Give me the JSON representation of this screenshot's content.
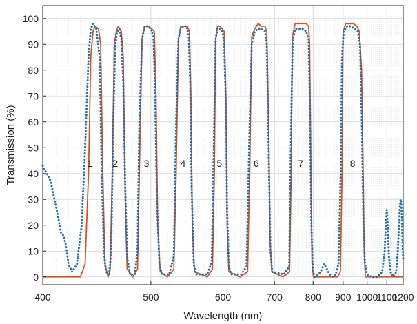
{
  "chart_data": {
    "type": "line",
    "title": "",
    "xlabel": "Wavelength (nm)",
    "ylabel": "Transmission (%)",
    "x_scale": "reciprocal",
    "xlim": [
      400,
      1200
    ],
    "ylim": [
      -3,
      105
    ],
    "xticks": [
      400,
      500,
      600,
      700,
      800,
      900,
      1000,
      1100,
      1200
    ],
    "xtick_labels": [
      "400",
      "500",
      "600",
      "700",
      "800",
      "900",
      "1000",
      "1100",
      "1200"
    ],
    "yticks": [
      0,
      10,
      20,
      30,
      40,
      50,
      60,
      70,
      80,
      90,
      100
    ],
    "ytick_labels": [
      "0",
      "10",
      "20",
      "30",
      "40",
      "50",
      "60",
      "70",
      "80",
      "90",
      "100"
    ],
    "grid": true,
    "legend": "none",
    "series": [
      {
        "color": "#d95319",
        "style": "solid",
        "points": [
          [
            400,
            0
          ],
          [
            430,
            0
          ],
          [
            434,
            5
          ],
          [
            437,
            40
          ],
          [
            439,
            85
          ],
          [
            441,
            95
          ],
          [
            443,
            97
          ],
          [
            446,
            96
          ],
          [
            448,
            90
          ],
          [
            450,
            40
          ],
          [
            452,
            5
          ],
          [
            455,
            0
          ],
          [
            457,
            3
          ],
          [
            459,
            40
          ],
          [
            461,
            90
          ],
          [
            463,
            95
          ],
          [
            465,
            97
          ],
          [
            468,
            95
          ],
          [
            470,
            85
          ],
          [
            472,
            30
          ],
          [
            474,
            3
          ],
          [
            480,
            0
          ],
          [
            485,
            3
          ],
          [
            487,
            40
          ],
          [
            490,
            92
          ],
          [
            493,
            97
          ],
          [
            497,
            97
          ],
          [
            501,
            96
          ],
          [
            504,
            95
          ],
          [
            506,
            70
          ],
          [
            508,
            20
          ],
          [
            511,
            2
          ],
          [
            520,
            0
          ],
          [
            528,
            3
          ],
          [
            531,
            40
          ],
          [
            534,
            92
          ],
          [
            537,
            97
          ],
          [
            542,
            97
          ],
          [
            546,
            97
          ],
          [
            549,
            95
          ],
          [
            551,
            70
          ],
          [
            553,
            20
          ],
          [
            556,
            2
          ],
          [
            575,
            0
          ],
          [
            583,
            3
          ],
          [
            586,
            40
          ],
          [
            588,
            92
          ],
          [
            591,
            97
          ],
          [
            595,
            97
          ],
          [
            599,
            96
          ],
          [
            602,
            95
          ],
          [
            605,
            70
          ],
          [
            607,
            20
          ],
          [
            610,
            2
          ],
          [
            630,
            0
          ],
          [
            644,
            2
          ],
          [
            648,
            40
          ],
          [
            652,
            93
          ],
          [
            658,
            96
          ],
          [
            665,
            98
          ],
          [
            672,
            97
          ],
          [
            679,
            97
          ],
          [
            683,
            95
          ],
          [
            687,
            60
          ],
          [
            690,
            15
          ],
          [
            694,
            2
          ],
          [
            720,
            0
          ],
          [
            736,
            2
          ],
          [
            740,
            40
          ],
          [
            743,
            93
          ],
          [
            750,
            98
          ],
          [
            760,
            98
          ],
          [
            770,
            98
          ],
          [
            780,
            98
          ],
          [
            787,
            97
          ],
          [
            790,
            90
          ],
          [
            794,
            35
          ],
          [
            797,
            5
          ],
          [
            801,
            0
          ],
          [
            880,
            0
          ],
          [
            890,
            2
          ],
          [
            896,
            40
          ],
          [
            900,
            95
          ],
          [
            910,
            98
          ],
          [
            925,
            98
          ],
          [
            940,
            98
          ],
          [
            955,
            97
          ],
          [
            965,
            95
          ],
          [
            975,
            80
          ],
          [
            982,
            40
          ],
          [
            987,
            8
          ],
          [
            992,
            0
          ],
          [
            1200,
            0
          ]
        ]
      },
      {
        "color": "#1f6fb4",
        "style": "dotted",
        "points": [
          [
            400,
            43
          ],
          [
            406,
            37
          ],
          [
            411,
            25
          ],
          [
            414,
            17
          ],
          [
            416,
            16
          ],
          [
            418,
            12
          ],
          [
            420,
            5
          ],
          [
            423,
            2
          ],
          [
            427,
            5
          ],
          [
            431,
            20
          ],
          [
            434,
            50
          ],
          [
            437,
            85
          ],
          [
            439,
            96
          ],
          [
            441,
            98
          ],
          [
            444,
            96
          ],
          [
            447,
            85
          ],
          [
            449,
            40
          ],
          [
            451,
            10
          ],
          [
            453,
            2
          ],
          [
            456,
            1
          ],
          [
            458,
            10
          ],
          [
            460,
            60
          ],
          [
            462,
            90
          ],
          [
            464,
            95
          ],
          [
            466,
            96
          ],
          [
            468,
            92
          ],
          [
            470,
            75
          ],
          [
            472,
            35
          ],
          [
            474,
            8
          ],
          [
            477,
            1
          ],
          [
            482,
            1
          ],
          [
            485,
            10
          ],
          [
            487,
            60
          ],
          [
            490,
            92
          ],
          [
            493,
            97
          ],
          [
            496,
            97
          ],
          [
            500,
            96
          ],
          [
            503,
            93
          ],
          [
            505,
            70
          ],
          [
            507,
            30
          ],
          [
            510,
            5
          ],
          [
            513,
            1
          ],
          [
            522,
            1
          ],
          [
            528,
            8
          ],
          [
            531,
            60
          ],
          [
            534,
            92
          ],
          [
            537,
            96
          ],
          [
            541,
            97
          ],
          [
            545,
            97
          ],
          [
            548,
            93
          ],
          [
            550,
            75
          ],
          [
            552,
            35
          ],
          [
            555,
            5
          ],
          [
            558,
            1
          ],
          [
            575,
            1
          ],
          [
            582,
            6
          ],
          [
            585,
            50
          ],
          [
            588,
            92
          ],
          [
            591,
            96
          ],
          [
            595,
            96
          ],
          [
            599,
            95
          ],
          [
            602,
            90
          ],
          [
            605,
            65
          ],
          [
            607,
            25
          ],
          [
            610,
            4
          ],
          [
            614,
            1
          ],
          [
            632,
            1
          ],
          [
            642,
            4
          ],
          [
            648,
            60
          ],
          [
            652,
            90
          ],
          [
            658,
            95
          ],
          [
            665,
            96
          ],
          [
            672,
            96
          ],
          [
            679,
            95
          ],
          [
            683,
            90
          ],
          [
            687,
            50
          ],
          [
            691,
            10
          ],
          [
            695,
            2
          ],
          [
            722,
            1
          ],
          [
            735,
            4
          ],
          [
            740,
            60
          ],
          [
            744,
            92
          ],
          [
            752,
            96
          ],
          [
            760,
            96
          ],
          [
            770,
            96
          ],
          [
            780,
            95
          ],
          [
            787,
            92
          ],
          [
            791,
            65
          ],
          [
            795,
            20
          ],
          [
            799,
            3
          ],
          [
            805,
            0
          ],
          [
            815,
            1
          ],
          [
            823,
            2
          ],
          [
            834,
            5
          ],
          [
            843,
            3
          ],
          [
            852,
            1
          ],
          [
            863,
            0
          ],
          [
            873,
            1
          ],
          [
            883,
            5
          ],
          [
            891,
            40
          ],
          [
            896,
            85
          ],
          [
            902,
            95
          ],
          [
            915,
            97
          ],
          [
            930,
            97
          ],
          [
            945,
            96
          ],
          [
            958,
            95
          ],
          [
            968,
            90
          ],
          [
            976,
            60
          ],
          [
            983,
            20
          ],
          [
            990,
            5
          ],
          [
            1000,
            1
          ],
          [
            1020,
            0
          ],
          [
            1050,
            0
          ],
          [
            1075,
            2
          ],
          [
            1088,
            10
          ],
          [
            1096,
            22
          ],
          [
            1100,
            26
          ],
          [
            1104,
            22
          ],
          [
            1112,
            8
          ],
          [
            1120,
            2
          ],
          [
            1140,
            0
          ],
          [
            1155,
            2
          ],
          [
            1165,
            10
          ],
          [
            1173,
            20
          ],
          [
            1178,
            27
          ],
          [
            1183,
            30
          ],
          [
            1187,
            29
          ],
          [
            1191,
            23
          ],
          [
            1196,
            12
          ],
          [
            1200,
            7
          ]
        ]
      }
    ],
    "annotations": [
      {
        "text": "1",
        "x": 438,
        "y": 44
      },
      {
        "text": "2",
        "x": 462,
        "y": 44
      },
      {
        "text": "3",
        "x": 495,
        "y": 44
      },
      {
        "text": "4",
        "x": 540,
        "y": 44
      },
      {
        "text": "5",
        "x": 594,
        "y": 44
      },
      {
        "text": "6",
        "x": 661,
        "y": 44
      },
      {
        "text": "7",
        "x": 765,
        "y": 44
      },
      {
        "text": "8",
        "x": 937,
        "y": 44
      }
    ]
  }
}
